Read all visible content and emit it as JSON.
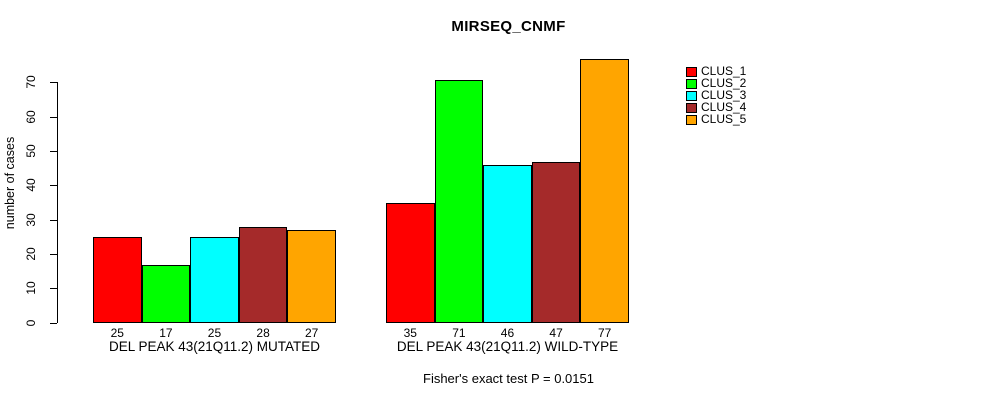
{
  "chart_data": {
    "type": "bar",
    "title": "MIRSEQ_CNMF",
    "ylabel": "number of cases",
    "yticks": [
      0,
      10,
      20,
      30,
      40,
      50,
      60,
      70
    ],
    "ylim": [
      0,
      77
    ],
    "grid": false,
    "legend_position": "top-right",
    "categories": [
      "DEL PEAK 43(21Q11.2) MUTATED",
      "DEL PEAK 43(21Q11.2) WILD-TYPE"
    ],
    "series": [
      {
        "name": "CLUS_1",
        "color": "#FF0000",
        "values": [
          25,
          35
        ]
      },
      {
        "name": "CLUS_2",
        "color": "#00FF00",
        "values": [
          17,
          71
        ]
      },
      {
        "name": "CLUS_3",
        "color": "#00FFFF",
        "values": [
          25,
          46
        ]
      },
      {
        "name": "CLUS_4",
        "color": "#A52A2A",
        "values": [
          28,
          47
        ]
      },
      {
        "name": "CLUS_5",
        "color": "#FFA500",
        "values": [
          27,
          77
        ]
      }
    ],
    "bar_value_labels": true,
    "footnote": "Fisher's exact test P = 0.0151",
    "colors": {
      "background": "#FFFFFF",
      "axis": "#000000",
      "text": "#000000"
    }
  }
}
